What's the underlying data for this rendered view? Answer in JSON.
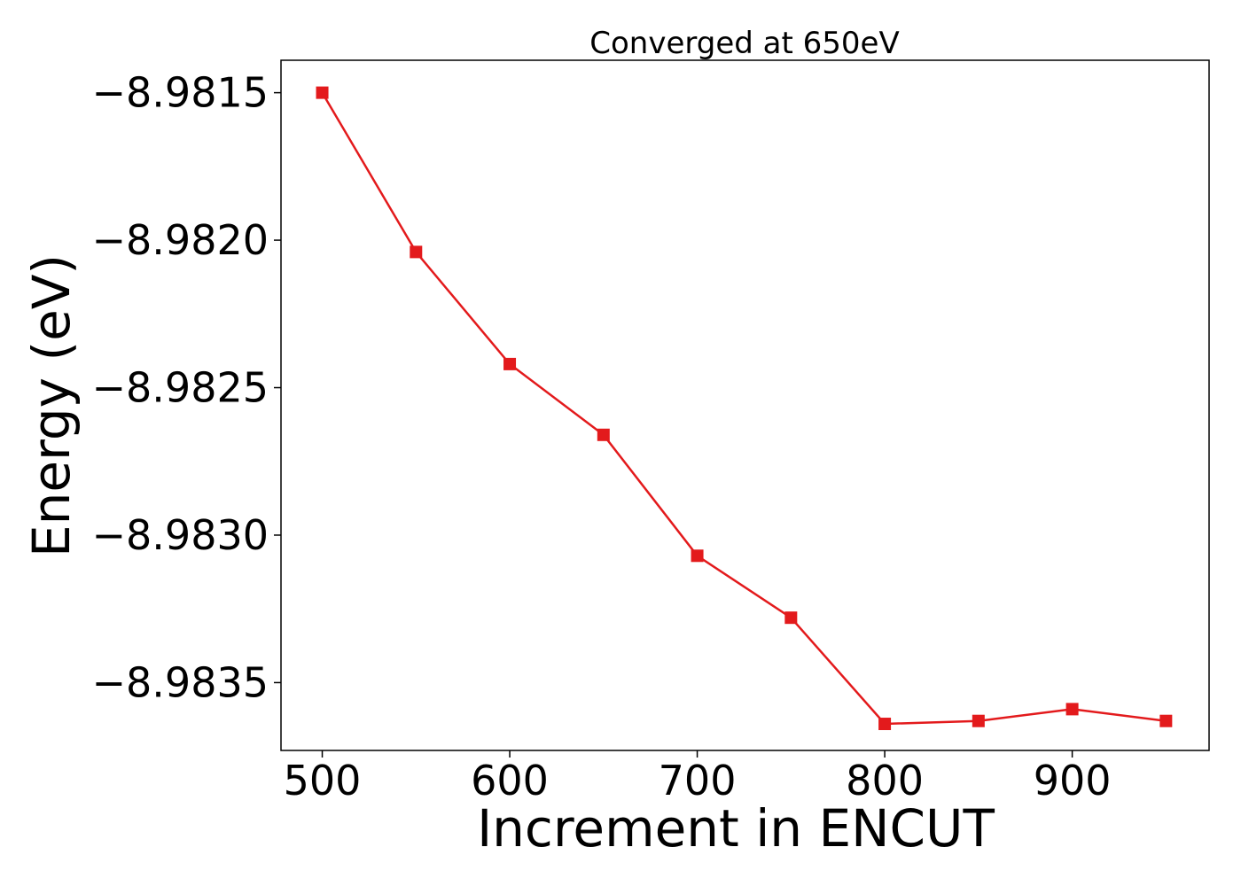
{
  "chart_data": {
    "type": "line",
    "title": "Converged at 650eV",
    "xlabel": "Increment in ENCUT",
    "ylabel": "Energy (eV)",
    "x": [
      500,
      550,
      600,
      650,
      700,
      750,
      800,
      850,
      900,
      950
    ],
    "series": [
      {
        "values": [
          -8.9815,
          -8.98204,
          -8.98242,
          -8.98266,
          -8.98307,
          -8.98328,
          -8.98364,
          -8.98363,
          -8.98359,
          -8.98363
        ],
        "color": "#e31a1c",
        "marker": "square"
      }
    ],
    "xlim": [
      478,
      973
    ],
    "ylim": [
      -8.98373,
      -8.98139
    ],
    "xticks": [
      500,
      600,
      700,
      800,
      900
    ],
    "xtick_labels": [
      "500",
      "600",
      "700",
      "800",
      "900"
    ],
    "yticks": [
      -8.9815,
      -8.982,
      -8.9825,
      -8.983,
      -8.9835
    ],
    "ytick_labels": [
      "−8.9815",
      "−8.9820",
      "−8.9825",
      "−8.9830",
      "−8.9835"
    ],
    "grid": false,
    "legend": "none"
  }
}
